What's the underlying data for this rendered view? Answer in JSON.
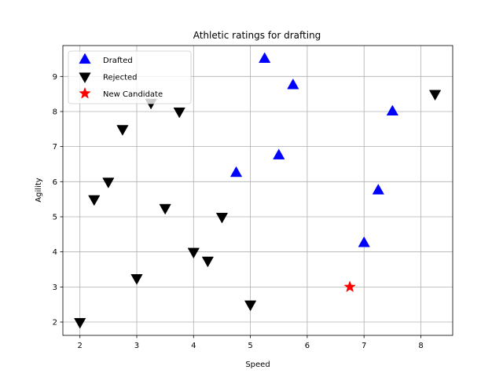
{
  "chart_data": {
    "type": "scatter",
    "title": "Athletic ratings for drafting",
    "xlabel": "Speed",
    "ylabel": "Agility",
    "xlim": [
      1.7,
      8.56
    ],
    "ylim": [
      1.62,
      9.88
    ],
    "xticks": [
      2,
      3,
      4,
      5,
      6,
      7,
      8
    ],
    "yticks": [
      2,
      3,
      4,
      5,
      6,
      7,
      8,
      9
    ],
    "grid": true,
    "legend_position": "top-left",
    "series": [
      {
        "name": "Drafted",
        "marker": "triangle-up",
        "color": "#0000ff",
        "points": [
          [
            5.25,
            9.5
          ],
          [
            5.75,
            8.75
          ],
          [
            7.5,
            8.0
          ],
          [
            4.75,
            6.25
          ],
          [
            5.5,
            6.75
          ],
          [
            7.25,
            5.75
          ],
          [
            7.0,
            4.25
          ]
        ]
      },
      {
        "name": "Rejected",
        "marker": "triangle-down",
        "color": "#000000",
        "points": [
          [
            3.25,
            8.25
          ],
          [
            3.75,
            8.0
          ],
          [
            2.75,
            7.5
          ],
          [
            2.5,
            6.0
          ],
          [
            2.25,
            5.5
          ],
          [
            3.5,
            5.25
          ],
          [
            4.5,
            5.0
          ],
          [
            4.0,
            4.0
          ],
          [
            4.25,
            3.75
          ],
          [
            3.0,
            3.25
          ],
          [
            5.0,
            2.5
          ],
          [
            2.0,
            2.0
          ],
          [
            8.25,
            8.5
          ]
        ]
      },
      {
        "name": "New Candidate",
        "marker": "star",
        "color": "#ff0000",
        "points": [
          [
            6.75,
            3.0
          ]
        ]
      }
    ]
  }
}
